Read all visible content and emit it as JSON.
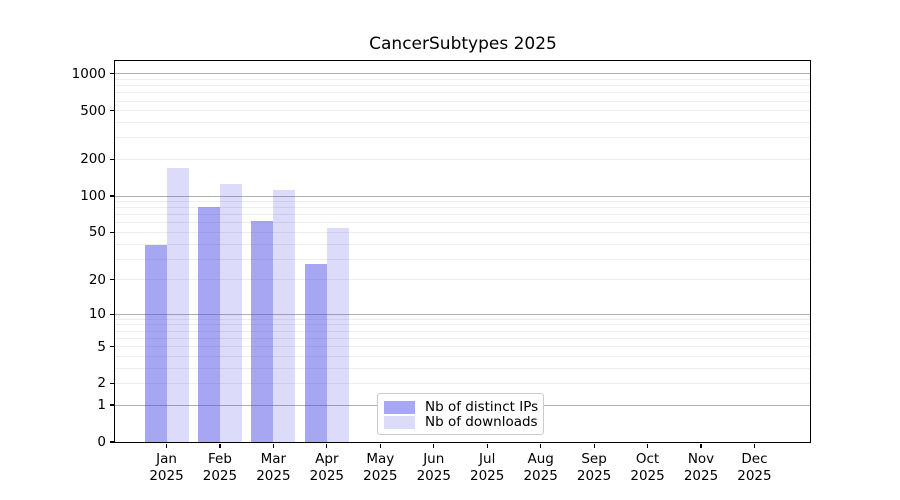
{
  "chart_data": {
    "type": "bar",
    "title": "CancerSubtypes 2025",
    "year_label": "2025",
    "categories": [
      "Jan",
      "Feb",
      "Mar",
      "Apr",
      "May",
      "Jun",
      "Jul",
      "Aug",
      "Sep",
      "Oct",
      "Nov",
      "Dec"
    ],
    "series": [
      {
        "name": "Nb of distinct IPs",
        "color": "#a7a7f3",
        "fill_rgba": "rgba(70,70,230,0.48)",
        "values": [
          39,
          81,
          62,
          27,
          0,
          0,
          0,
          0,
          0,
          0,
          0,
          0
        ]
      },
      {
        "name": "Nb of downloads",
        "color": "#dcdcf9",
        "fill_rgba": "rgba(70,70,230,0.19)",
        "values": [
          170,
          126,
          113,
          54,
          0,
          0,
          0,
          0,
          0,
          0,
          0,
          0
        ]
      }
    ],
    "xlabel": "",
    "ylabel": "",
    "yscale": "log1p",
    "yticks": [
      0,
      1,
      2,
      5,
      10,
      20,
      50,
      100,
      200,
      500,
      1000
    ],
    "ylim": [
      0,
      1270
    ],
    "grid": {
      "on": true,
      "major_lines": [
        1,
        10,
        100,
        1000
      ],
      "minor_multipliers": [
        2,
        3,
        4,
        5,
        6,
        7,
        8,
        9
      ],
      "minor_decades": [
        1,
        10,
        100
      ],
      "major_color": "#b0b0b0",
      "minor_color": "#ededed"
    },
    "legend_position": "lower-center",
    "axes_color": "#000000"
  }
}
